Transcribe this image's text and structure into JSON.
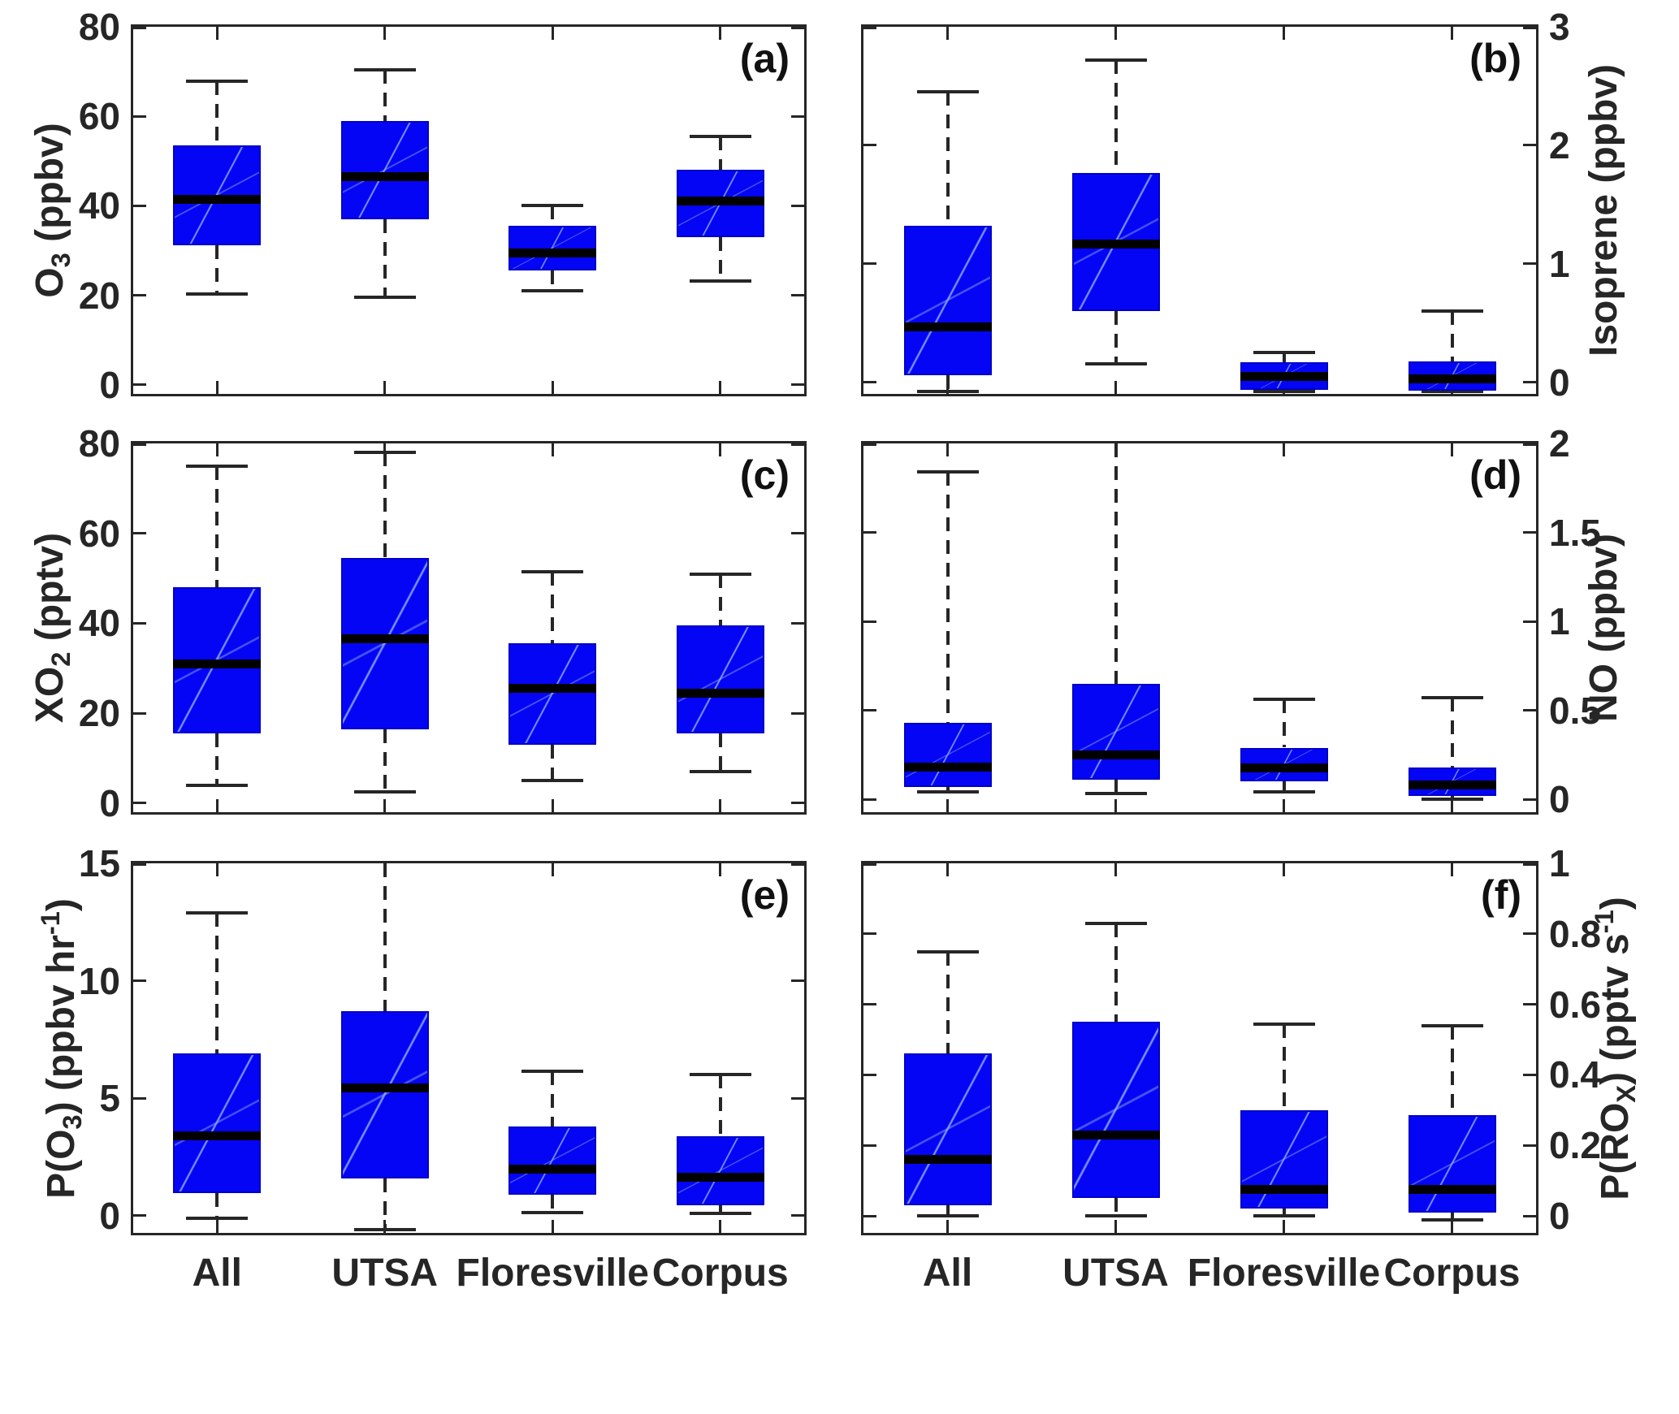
{
  "figure": {
    "background": "#ffffff",
    "colors": {
      "box_fill": "#0505f5",
      "box_edge": "#0000c8",
      "median": "#000000",
      "whisker": "#262626",
      "axis": "#262626",
      "text": "#262626",
      "panel_letter": "#111111"
    }
  },
  "chart_data": {
    "type": "boxplot-grid",
    "grid": "2 columns x 3 rows",
    "categories": [
      "All",
      "UTSA",
      "Floresville",
      "Corpus"
    ],
    "panels": [
      {
        "id": "a",
        "letter": "(a)",
        "side": "left",
        "row": 0,
        "col": 0,
        "ylabel_segments": [
          {
            "t": "O"
          },
          {
            "s": "3"
          },
          {
            "t": " (ppbv)"
          }
        ],
        "ylabel_plain": "O3 (ppbv)",
        "ymin": -2,
        "ymax": 80,
        "yticks": [
          {
            "v": 0,
            "label": "0"
          },
          {
            "v": 20,
            "label": "20"
          },
          {
            "v": 40,
            "label": "40"
          },
          {
            "v": 60,
            "label": "60"
          },
          {
            "v": 80,
            "label": "80"
          }
        ],
        "series": [
          {
            "name": "All",
            "lo": 20.3,
            "q1": 31.2,
            "med": 41.5,
            "q3": 53.5,
            "hi": 67.8
          },
          {
            "name": "UTSA",
            "lo": 19.5,
            "q1": 37,
            "med": 46.6,
            "q3": 59,
            "hi": 70.3
          },
          {
            "name": "Floresville",
            "lo": 21,
            "q1": 25.5,
            "med": 29.5,
            "q3": 35.5,
            "hi": 40
          },
          {
            "name": "Corpus",
            "lo": 23.2,
            "q1": 33,
            "med": 41,
            "q3": 48,
            "hi": 55.5
          }
        ]
      },
      {
        "id": "b",
        "letter": "(b)",
        "side": "right",
        "row": 0,
        "col": 1,
        "ylabel_segments": [
          {
            "t": "Isoprene (ppbv)"
          }
        ],
        "ylabel_plain": "Isoprene (ppbv)",
        "ymin": -0.096,
        "ymax": 3,
        "yticks": [
          {
            "v": 0,
            "label": "0"
          },
          {
            "v": 1,
            "label": "1"
          },
          {
            "v": 2,
            "label": "2"
          },
          {
            "v": 3,
            "label": "3"
          }
        ],
        "series": [
          {
            "name": "All",
            "lo": -0.09,
            "q1": 0.06,
            "med": 0.47,
            "q3": 1.32,
            "hi": 2.45
          },
          {
            "name": "UTSA",
            "lo": 0.16,
            "q1": 0.6,
            "med": 1.17,
            "q3": 1.77,
            "hi": 2.72
          },
          {
            "name": "Floresville",
            "lo": -0.09,
            "q1": -0.06,
            "med": 0.05,
            "q3": 0.17,
            "hi": 0.25
          },
          {
            "name": "Corpus",
            "lo": -0.09,
            "q1": -0.07,
            "med": 0.03,
            "q3": 0.18,
            "hi": 0.6
          }
        ]
      },
      {
        "id": "c",
        "letter": "(c)",
        "side": "left",
        "row": 1,
        "col": 0,
        "ylabel_segments": [
          {
            "t": "XO"
          },
          {
            "s": "2"
          },
          {
            "t": " (pptv)"
          }
        ],
        "ylabel_plain": "XO2 (pptv)",
        "ymin": -2,
        "ymax": 80,
        "yticks": [
          {
            "v": 0,
            "label": "0"
          },
          {
            "v": 20,
            "label": "20"
          },
          {
            "v": 40,
            "label": "40"
          },
          {
            "v": 60,
            "label": "60"
          },
          {
            "v": 80,
            "label": "80"
          }
        ],
        "series": [
          {
            "name": "All",
            "lo": 4,
            "q1": 15.5,
            "med": 31,
            "q3": 48,
            "hi": 75
          },
          {
            "name": "UTSA",
            "lo": 2.5,
            "q1": 16.5,
            "med": 36.5,
            "q3": 54.5,
            "hi": 78
          },
          {
            "name": "Floresville",
            "lo": 5,
            "q1": 13,
            "med": 25.5,
            "q3": 35.5,
            "hi": 51.5
          },
          {
            "name": "Corpus",
            "lo": 7,
            "q1": 15.5,
            "med": 24.5,
            "q3": 39.5,
            "hi": 51
          }
        ]
      },
      {
        "id": "d",
        "letter": "(d)",
        "side": "right",
        "row": 1,
        "col": 1,
        "ylabel_segments": [
          {
            "t": "NO (ppbv)"
          }
        ],
        "ylabel_plain": "NO (ppbv)",
        "ymin": -0.073,
        "ymax": 2,
        "yticks": [
          {
            "v": 0,
            "label": "0"
          },
          {
            "v": 0.5,
            "label": "0.5"
          },
          {
            "v": 1,
            "label": "1"
          },
          {
            "v": 1.5,
            "label": "1.5"
          },
          {
            "v": 2,
            "label": "2"
          }
        ],
        "series": [
          {
            "name": "All",
            "lo": 0.04,
            "q1": 0.07,
            "med": 0.18,
            "q3": 0.43,
            "hi": 1.84
          },
          {
            "name": "UTSA",
            "lo": 0.03,
            "q1": 0.11,
            "med": 0.25,
            "q3": 0.65,
            "hi": 2.0,
            "clip_top": true
          },
          {
            "name": "Floresville",
            "lo": 0.04,
            "q1": 0.1,
            "med": 0.175,
            "q3": 0.29,
            "hi": 0.56
          },
          {
            "name": "Corpus",
            "lo": 0.0,
            "q1": 0.02,
            "med": 0.08,
            "q3": 0.18,
            "hi": 0.57
          }
        ]
      },
      {
        "id": "e",
        "letter": "(e)",
        "side": "left",
        "row": 2,
        "col": 0,
        "ylabel_segments": [
          {
            "t": "P(O"
          },
          {
            "s": "3"
          },
          {
            "t": ") (ppbv hr"
          },
          {
            "p": "-1"
          },
          {
            "t": ")"
          }
        ],
        "ylabel_plain": "P(O3) (ppbv hr^-1)",
        "ymin": -0.73,
        "ymax": 15,
        "yticks": [
          {
            "v": 0,
            "label": "0"
          },
          {
            "v": 5,
            "label": "5"
          },
          {
            "v": 10,
            "label": "10"
          },
          {
            "v": 15,
            "label": "15"
          }
        ],
        "series": [
          {
            "name": "All",
            "lo": -0.1,
            "q1": 0.95,
            "med": 3.4,
            "q3": 6.9,
            "hi": 12.9
          },
          {
            "name": "UTSA",
            "lo": -0.6,
            "q1": 1.6,
            "med": 5.45,
            "q3": 8.7,
            "hi": 15,
            "clip_top": true
          },
          {
            "name": "Floresville",
            "lo": 0.15,
            "q1": 0.9,
            "med": 2.0,
            "q3": 3.8,
            "hi": 6.15
          },
          {
            "name": "Corpus",
            "lo": 0.1,
            "q1": 0.45,
            "med": 1.65,
            "q3": 3.4,
            "hi": 6.0
          }
        ]
      },
      {
        "id": "f",
        "letter": "(f)",
        "side": "right",
        "row": 2,
        "col": 1,
        "ylabel_segments": [
          {
            "t": "P(RO"
          },
          {
            "s": "X"
          },
          {
            "t": ") (pptv s"
          },
          {
            "p": "-1"
          },
          {
            "t": ")"
          }
        ],
        "ylabel_plain": "P(ROX) (pptv s^-1)",
        "ymin": -0.048,
        "ymax": 1,
        "yticks": [
          {
            "v": 0,
            "label": "0"
          },
          {
            "v": 0.2,
            "label": "0.2"
          },
          {
            "v": 0.4,
            "label": "0.4"
          },
          {
            "v": 0.6,
            "label": "0.6"
          },
          {
            "v": 0.8,
            "label": "0.8"
          },
          {
            "v": 1,
            "label": "1"
          }
        ],
        "series": [
          {
            "name": "All",
            "lo": 0.0,
            "q1": 0.03,
            "med": 0.16,
            "q3": 0.46,
            "hi": 0.75
          },
          {
            "name": "UTSA",
            "lo": 0.0,
            "q1": 0.05,
            "med": 0.23,
            "q3": 0.55,
            "hi": 0.83
          },
          {
            "name": "Floresville",
            "lo": 0.0,
            "q1": 0.02,
            "med": 0.075,
            "q3": 0.3,
            "hi": 0.545
          },
          {
            "name": "Corpus",
            "lo": -0.01,
            "q1": 0.01,
            "med": 0.075,
            "q3": 0.285,
            "hi": 0.54
          }
        ]
      }
    ],
    "xlabel_row": "bottom row only",
    "grid_lines": "off",
    "legend": "none"
  }
}
